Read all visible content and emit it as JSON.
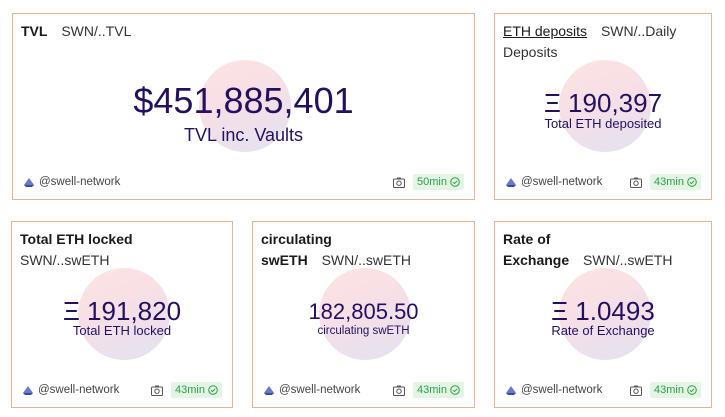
{
  "author_name": "@swell-network",
  "cards": {
    "tvl": {
      "title": "TVL",
      "sub": "SWN/..TVL",
      "value": "$451,885,401",
      "caption": "TVL inc. Vaults",
      "age": "50min"
    },
    "eth_deposits": {
      "title": "ETH deposits",
      "sub": "SWN/..Daily",
      "sub2": "Deposits",
      "value": "Ξ 190,397",
      "caption": "Total ETH deposited",
      "age": "43min"
    },
    "eth_locked": {
      "title": "Total ETH locked",
      "sub": "SWN/..swETH",
      "value": "Ξ 191,820",
      "caption": "Total ETH locked",
      "age": "43min"
    },
    "circulating": {
      "title": "circulating",
      "title2": "swETH",
      "sub": "SWN/..swETH",
      "value": "182,805.50",
      "caption": "circulating swETH",
      "age": "43min"
    },
    "exchange": {
      "title": "Rate of",
      "title2": "Exchange",
      "sub": "SWN/..swETH",
      "value": "Ξ 1.0493",
      "caption": "Rate of Exchange",
      "age": "43min"
    }
  },
  "colors": {
    "card_border": "#e2b49a",
    "value_text": "#24105e",
    "badge_bg": "#e3f6e6",
    "badge_text": "#2f9d47"
  }
}
